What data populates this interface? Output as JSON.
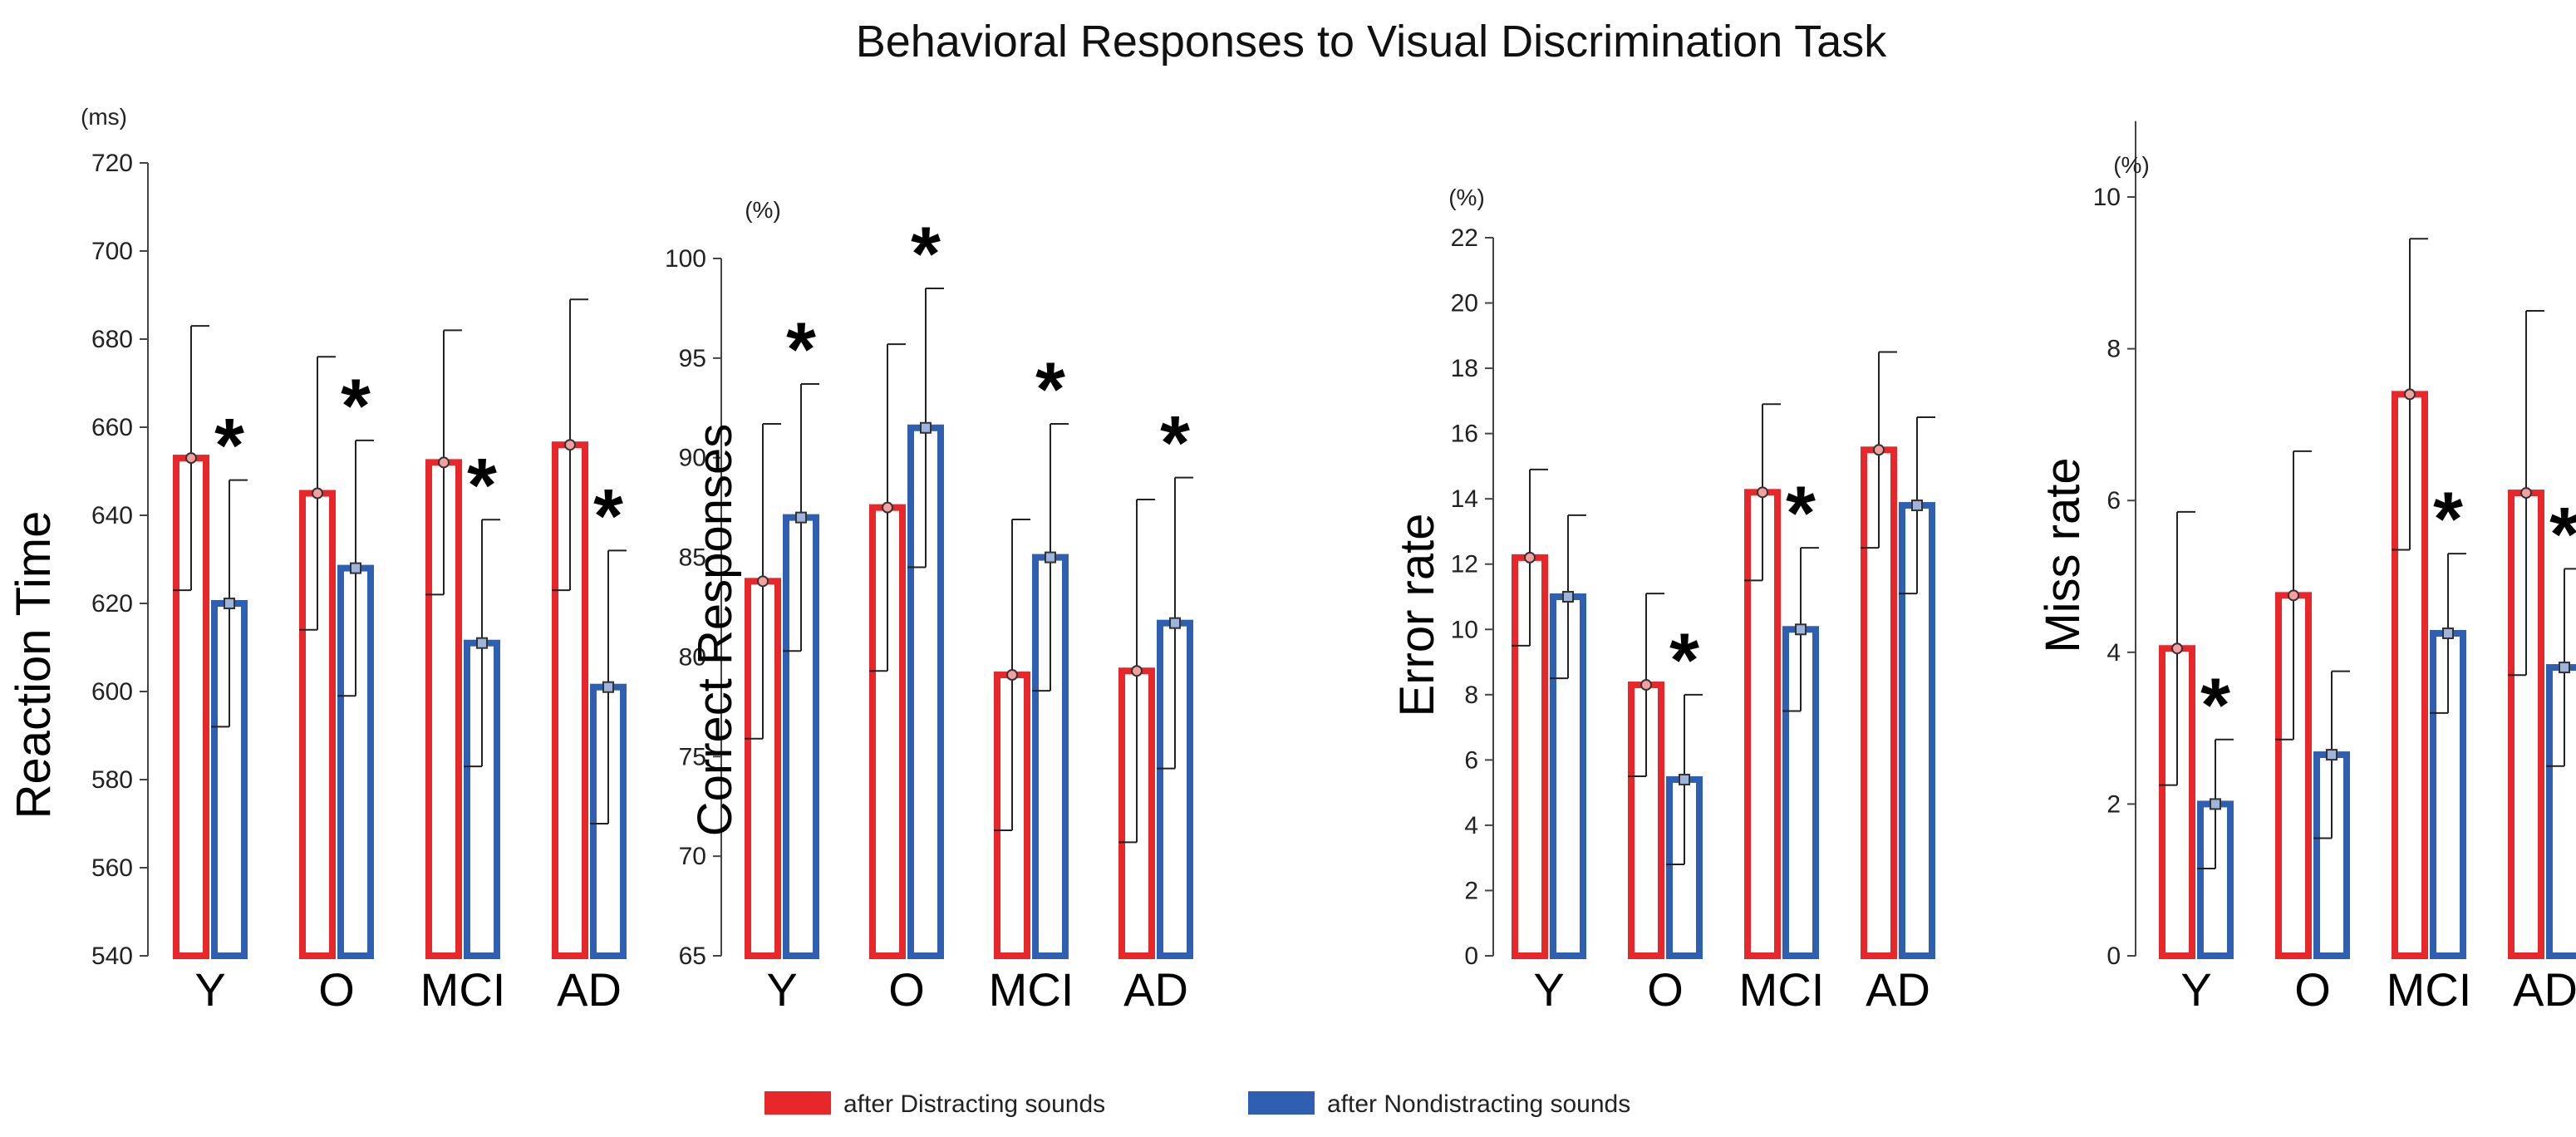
{
  "figure_title": "Behavioral Responses to Visual Discrimination Task",
  "legend": [
    {
      "label": "after Distracting sounds",
      "color": "#e8272b"
    },
    {
      "label": "after Nondistracting sounds",
      "color": "#2f5fb0"
    }
  ],
  "colors": {
    "distracting": "#e8272b",
    "nondistracting": "#2f5fb0"
  },
  "chart_data": [
    {
      "type": "bar",
      "title": "",
      "ylabel": "Reaction Time",
      "unit": "(ms)",
      "ylim": [
        540,
        720
      ],
      "yticks": [
        540,
        560,
        580,
        600,
        620,
        640,
        660,
        680,
        700,
        720
      ],
      "categories": [
        "Y",
        "O",
        "MCI",
        "AD"
      ],
      "series": [
        {
          "name": "after Distracting sounds",
          "values": [
            653,
            645,
            652,
            656
          ],
          "errors": [
            30,
            31,
            30,
            33
          ]
        },
        {
          "name": "after Nondistracting sounds",
          "values": [
            620,
            628,
            611,
            601
          ],
          "errors": [
            28,
            29,
            28,
            31
          ]
        }
      ],
      "significant": [
        true,
        true,
        true,
        true
      ]
    },
    {
      "type": "bar",
      "title": "",
      "ylabel": "Correct Responses",
      "unit": "(%)",
      "ylim": [
        65,
        100
      ],
      "yticks": [
        65,
        70,
        75,
        80,
        85,
        90,
        95,
        100
      ],
      "categories": [
        "Y",
        "O",
        "MCI",
        "AD"
      ],
      "series": [
        {
          "name": "after Distracting sounds",
          "values": [
            83.8,
            87.5,
            79.1,
            79.3
          ],
          "errors": [
            7.9,
            8.2,
            7.8,
            8.6
          ]
        },
        {
          "name": "after Nondistracting sounds",
          "values": [
            87.0,
            91.5,
            85.0,
            81.7
          ],
          "errors": [
            6.7,
            7.0,
            6.7,
            7.3
          ]
        }
      ],
      "significant": [
        true,
        true,
        true,
        true
      ]
    },
    {
      "type": "bar",
      "title": "",
      "ylabel": "Error rate",
      "unit": "(%)",
      "ylim": [
        0,
        22
      ],
      "yticks": [
        0,
        2,
        4,
        6,
        8,
        10,
        12,
        14,
        16,
        18,
        20,
        22
      ],
      "categories": [
        "Y",
        "O",
        "MCI",
        "AD"
      ],
      "series": [
        {
          "name": "after Distracting sounds",
          "values": [
            12.2,
            8.3,
            14.2,
            15.5
          ],
          "errors": [
            2.7,
            2.8,
            2.7,
            3.0
          ]
        },
        {
          "name": "after Nondistracting sounds",
          "values": [
            11.0,
            5.4,
            10.0,
            13.8
          ],
          "errors": [
            2.5,
            2.6,
            2.5,
            2.7
          ]
        }
      ],
      "significant": [
        false,
        true,
        true,
        false
      ]
    },
    {
      "type": "bar",
      "title": "",
      "ylabel": "Miss rate",
      "unit": "(%)",
      "ylim": [
        0,
        11
      ],
      "yticks": [
        0,
        2,
        4,
        6,
        8,
        10
      ],
      "categories": [
        "Y",
        "O",
        "MCI",
        "AD"
      ],
      "series": [
        {
          "name": "after Distracting sounds",
          "values": [
            4.05,
            4.75,
            7.4,
            6.1
          ],
          "errors": [
            1.8,
            1.9,
            2.05,
            2.4
          ]
        },
        {
          "name": "after Nondistracting sounds",
          "values": [
            2.0,
            2.65,
            4.25,
            3.8
          ],
          "errors": [
            0.85,
            1.1,
            1.05,
            1.3
          ]
        }
      ],
      "significant": [
        true,
        false,
        true,
        true
      ]
    }
  ]
}
